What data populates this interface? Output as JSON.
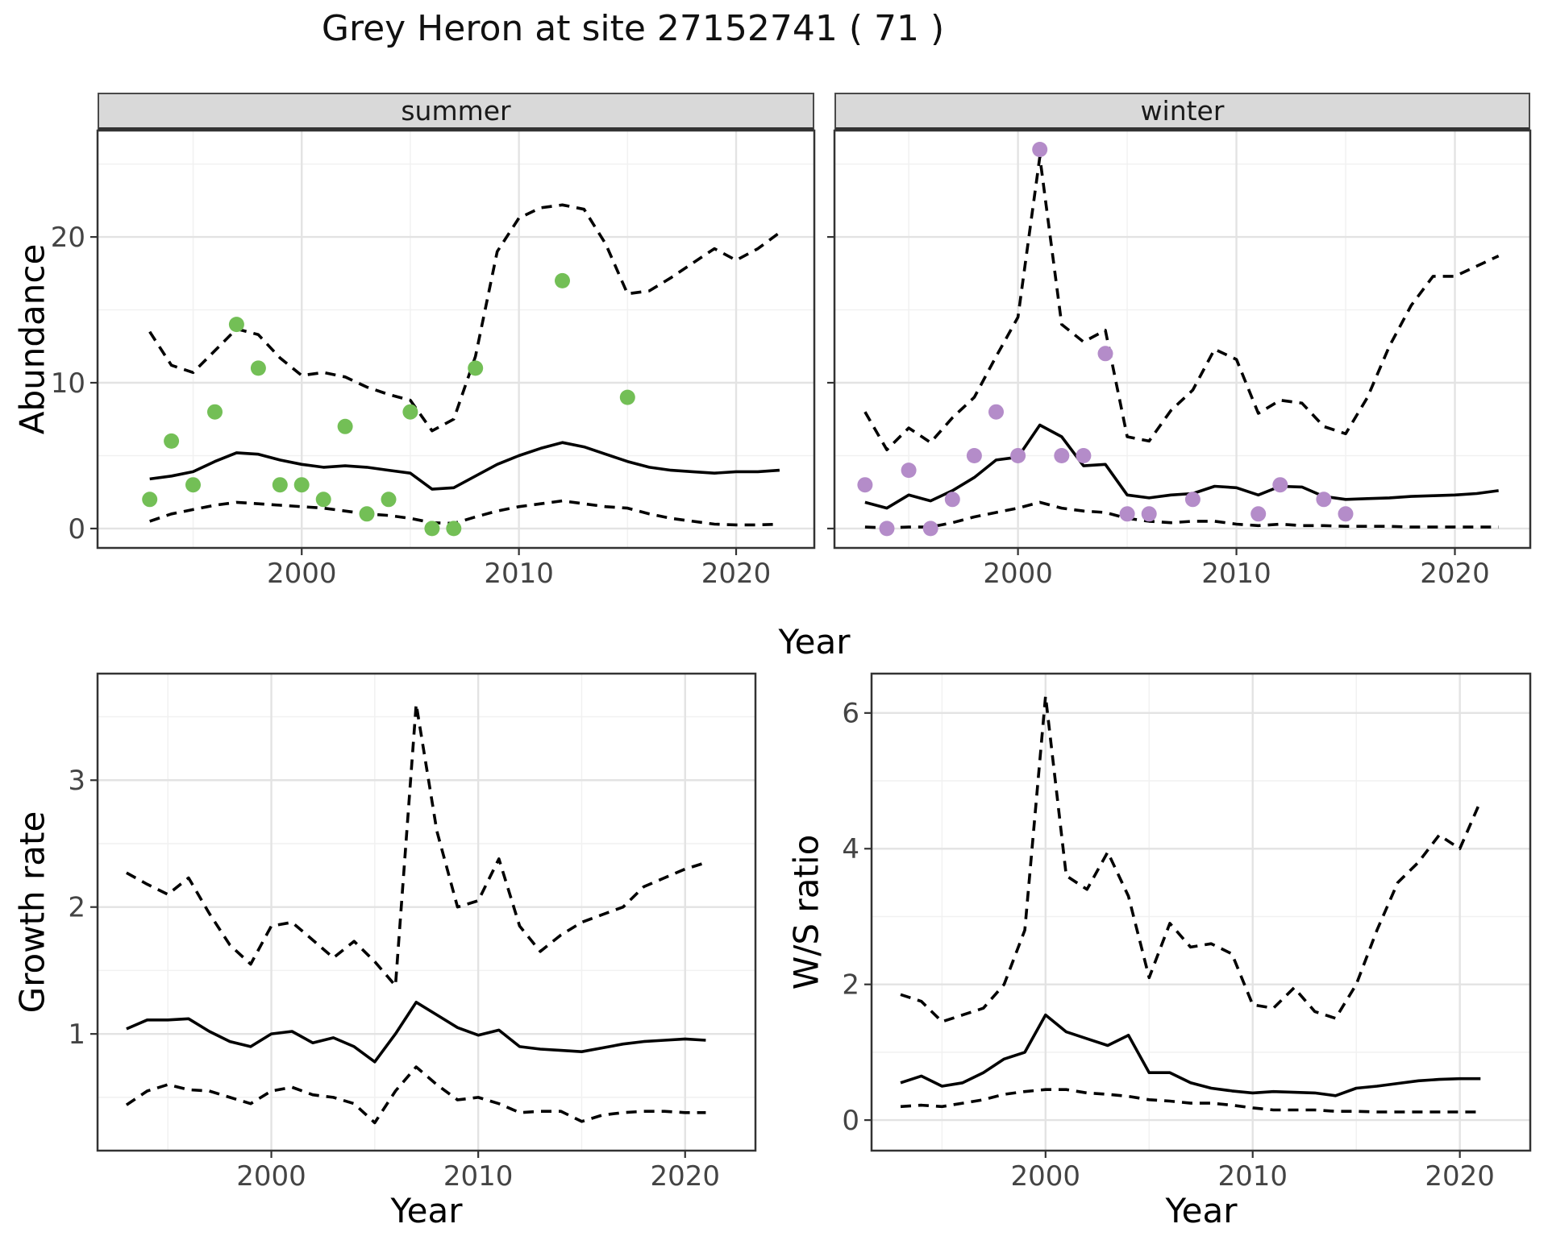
{
  "title": "Grey Heron at site 27152741 ( 71 )",
  "labels": {
    "top_xlabel": "Year"
  },
  "colors": {
    "summer_point": "#73BF56",
    "winter_point": "#B48CC9",
    "line": "#000000",
    "strip_bg": "#d9d9d9"
  },
  "chart_data": [
    {
      "type": "line",
      "id": "abundance-summer",
      "facet_label": "summer",
      "xlabel": "Year",
      "ylabel": "Abundance",
      "x": [
        1993,
        1994,
        1995,
        1996,
        1997,
        1998,
        1999,
        2000,
        2001,
        2002,
        2003,
        2004,
        2005,
        2006,
        2007,
        2008,
        2009,
        2010,
        2011,
        2012,
        2013,
        2014,
        2015,
        2016,
        2017,
        2018,
        2019,
        2020,
        2021,
        2022
      ],
      "xticks": [
        2000,
        2010,
        2020
      ],
      "yticks": [
        0,
        10,
        20
      ],
      "ylim": [
        0,
        27
      ],
      "grid": true,
      "legend": "none",
      "series": [
        {
          "name": "fitted",
          "style": "solid",
          "values": [
            3.4,
            3.6,
            3.9,
            4.6,
            5.2,
            5.1,
            4.7,
            4.4,
            4.2,
            4.3,
            4.2,
            4.0,
            3.8,
            2.7,
            2.8,
            3.6,
            4.4,
            5.0,
            5.5,
            5.9,
            5.6,
            5.1,
            4.6,
            4.2,
            4.0,
            3.9,
            3.8,
            3.9,
            3.9,
            4.0
          ]
        },
        {
          "name": "upper_ci",
          "style": "dashed",
          "values": [
            13.5,
            11.2,
            10.7,
            12.2,
            13.7,
            13.3,
            11.7,
            10.5,
            10.7,
            10.4,
            9.7,
            9.2,
            8.8,
            6.7,
            7.5,
            11.8,
            19.0,
            21.3,
            22.0,
            22.2,
            21.9,
            19.5,
            16.1,
            16.3,
            17.2,
            18.2,
            19.2,
            18.4,
            19.2,
            20.3
          ]
        },
        {
          "name": "lower_ci",
          "style": "dashed",
          "values": [
            0.5,
            1.0,
            1.3,
            1.6,
            1.8,
            1.7,
            1.6,
            1.5,
            1.4,
            1.2,
            1.0,
            0.9,
            0.7,
            0.4,
            0.35,
            0.8,
            1.2,
            1.5,
            1.7,
            1.9,
            1.7,
            1.5,
            1.4,
            1.0,
            0.7,
            0.5,
            0.3,
            0.25,
            0.25,
            0.3
          ]
        }
      ],
      "points": {
        "name": "observed_counts",
        "color_key": "summer_point",
        "x": [
          1993,
          1994,
          1995,
          1996,
          1997,
          1998,
          1999,
          2000,
          2001,
          2002,
          2003,
          2004,
          2005,
          2006,
          2007,
          2008,
          2012,
          2015
        ],
        "y": [
          2,
          6,
          3,
          8,
          14,
          11,
          3,
          3,
          2,
          7,
          1,
          2,
          8,
          0,
          0,
          11,
          17,
          9
        ]
      }
    },
    {
      "type": "line",
      "id": "abundance-winter",
      "facet_label": "winter",
      "xlabel": "Year",
      "ylabel": "Abundance",
      "x": [
        1993,
        1994,
        1995,
        1996,
        1997,
        1998,
        1999,
        2000,
        2001,
        2002,
        2003,
        2004,
        2005,
        2006,
        2007,
        2008,
        2009,
        2010,
        2011,
        2012,
        2013,
        2014,
        2015,
        2016,
        2017,
        2018,
        2019,
        2020,
        2021,
        2022
      ],
      "xticks": [
        2000,
        2010,
        2020
      ],
      "yticks": [
        0,
        10,
        20
      ],
      "ylim": [
        0,
        27
      ],
      "grid": true,
      "legend": "none",
      "series": [
        {
          "name": "fitted",
          "style": "solid",
          "values": [
            1.8,
            1.4,
            2.3,
            1.9,
            2.6,
            3.5,
            4.7,
            4.9,
            7.1,
            6.3,
            4.3,
            4.4,
            2.3,
            2.1,
            2.3,
            2.4,
            2.9,
            2.8,
            2.3,
            2.9,
            2.85,
            2.2,
            2.0,
            2.05,
            2.1,
            2.2,
            2.25,
            2.3,
            2.4,
            2.6
          ]
        },
        {
          "name": "upper_ci",
          "style": "dashed",
          "values": [
            8.0,
            5.4,
            6.9,
            5.9,
            7.6,
            9.0,
            11.8,
            14.5,
            25.5,
            14.0,
            12.8,
            13.6,
            6.3,
            6.0,
            8.1,
            9.5,
            12.3,
            11.6,
            7.9,
            8.8,
            8.6,
            7.0,
            6.5,
            9.0,
            12.5,
            15.3,
            17.3,
            17.3,
            18.0,
            18.7
          ]
        },
        {
          "name": "lower_ci",
          "style": "dashed",
          "values": [
            0.1,
            0.05,
            0.1,
            0.1,
            0.4,
            0.8,
            1.1,
            1.4,
            1.8,
            1.4,
            1.2,
            1.1,
            0.7,
            0.5,
            0.4,
            0.5,
            0.5,
            0.3,
            0.2,
            0.3,
            0.2,
            0.2,
            0.15,
            0.15,
            0.15,
            0.1,
            0.1,
            0.1,
            0.1,
            0.1
          ]
        }
      ],
      "points": {
        "name": "observed_counts",
        "color_key": "winter_point",
        "x": [
          1993,
          1994,
          1995,
          1996,
          1997,
          1998,
          1999,
          2000,
          2001,
          2002,
          2003,
          2004,
          2005,
          2006,
          2008,
          2011,
          2012,
          2014,
          2015
        ],
        "y": [
          3,
          0,
          4,
          0,
          2,
          5,
          8,
          5,
          26,
          5,
          5,
          12,
          1,
          1,
          2,
          1,
          3,
          2,
          1
        ]
      }
    },
    {
      "type": "line",
      "id": "growth-rate",
      "facet_label": "",
      "xlabel": "Year",
      "ylabel": "Growth rate",
      "x": [
        1993,
        1994,
        1995,
        1996,
        1997,
        1998,
        1999,
        2000,
        2001,
        2002,
        2003,
        2004,
        2005,
        2006,
        2007,
        2008,
        2009,
        2010,
        2011,
        2012,
        2013,
        2014,
        2015,
        2016,
        2017,
        2018,
        2019,
        2020,
        2021
      ],
      "xticks": [
        2000,
        2010,
        2020
      ],
      "yticks": [
        1,
        2,
        3
      ],
      "ylim": [
        0.1,
        3.8
      ],
      "grid": true,
      "legend": "none",
      "series": [
        {
          "name": "fitted",
          "style": "solid",
          "values": [
            1.04,
            1.11,
            1.11,
            1.12,
            1.02,
            0.94,
            0.9,
            1.0,
            1.02,
            0.93,
            0.97,
            0.9,
            0.78,
            1.0,
            1.25,
            1.15,
            1.05,
            0.99,
            1.03,
            0.9,
            0.88,
            0.87,
            0.86,
            0.89,
            0.92,
            0.94,
            0.95,
            0.96,
            0.95
          ]
        },
        {
          "name": "upper_ci",
          "style": "dashed",
          "values": [
            2.27,
            2.18,
            2.1,
            2.23,
            1.95,
            1.7,
            1.55,
            1.85,
            1.88,
            1.74,
            1.6,
            1.73,
            1.57,
            1.38,
            3.6,
            2.6,
            2.0,
            2.05,
            2.38,
            1.85,
            1.65,
            1.78,
            1.88,
            1.94,
            2.0,
            2.16,
            2.23,
            2.3,
            2.35
          ]
        },
        {
          "name": "lower_ci",
          "style": "dashed",
          "values": [
            0.44,
            0.55,
            0.6,
            0.56,
            0.55,
            0.5,
            0.45,
            0.55,
            0.58,
            0.52,
            0.5,
            0.45,
            0.3,
            0.55,
            0.74,
            0.6,
            0.48,
            0.5,
            0.45,
            0.38,
            0.39,
            0.39,
            0.31,
            0.36,
            0.38,
            0.39,
            0.39,
            0.38,
            0.38
          ]
        }
      ]
    },
    {
      "type": "line",
      "id": "ws-ratio",
      "facet_label": "",
      "xlabel": "Year",
      "ylabel": "W/S ratio",
      "x": [
        1993,
        1994,
        1995,
        1996,
        1997,
        1998,
        1999,
        2000,
        2001,
        2002,
        2003,
        2004,
        2005,
        2006,
        2007,
        2008,
        2009,
        2010,
        2011,
        2012,
        2013,
        2014,
        2015,
        2016,
        2017,
        2018,
        2019,
        2020,
        2021
      ],
      "xticks": [
        2000,
        2010,
        2020
      ],
      "yticks": [
        0,
        2,
        4,
        6
      ],
      "ylim": [
        0,
        6.6
      ],
      "grid": true,
      "legend": "none",
      "series": [
        {
          "name": "fitted",
          "style": "solid",
          "values": [
            0.55,
            0.65,
            0.5,
            0.55,
            0.7,
            0.9,
            1.0,
            1.55,
            1.3,
            1.2,
            1.1,
            1.25,
            0.7,
            0.7,
            0.55,
            0.47,
            0.43,
            0.4,
            0.42,
            0.41,
            0.4,
            0.36,
            0.47,
            0.5,
            0.54,
            0.58,
            0.6,
            0.61,
            0.61
          ]
        },
        {
          "name": "upper_ci",
          "style": "dashed",
          "values": [
            1.85,
            1.75,
            1.45,
            1.55,
            1.65,
            2.0,
            2.8,
            6.25,
            3.6,
            3.4,
            3.95,
            3.3,
            2.1,
            2.9,
            2.55,
            2.6,
            2.45,
            1.7,
            1.65,
            1.95,
            1.6,
            1.5,
            2.0,
            2.8,
            3.5,
            3.8,
            4.2,
            4.0,
            4.7
          ]
        },
        {
          "name": "lower_ci",
          "style": "dashed",
          "values": [
            0.2,
            0.22,
            0.2,
            0.25,
            0.3,
            0.38,
            0.42,
            0.45,
            0.45,
            0.4,
            0.38,
            0.35,
            0.3,
            0.28,
            0.25,
            0.25,
            0.22,
            0.18,
            0.15,
            0.15,
            0.15,
            0.13,
            0.13,
            0.12,
            0.12,
            0.12,
            0.12,
            0.12,
            0.12
          ]
        }
      ]
    }
  ]
}
